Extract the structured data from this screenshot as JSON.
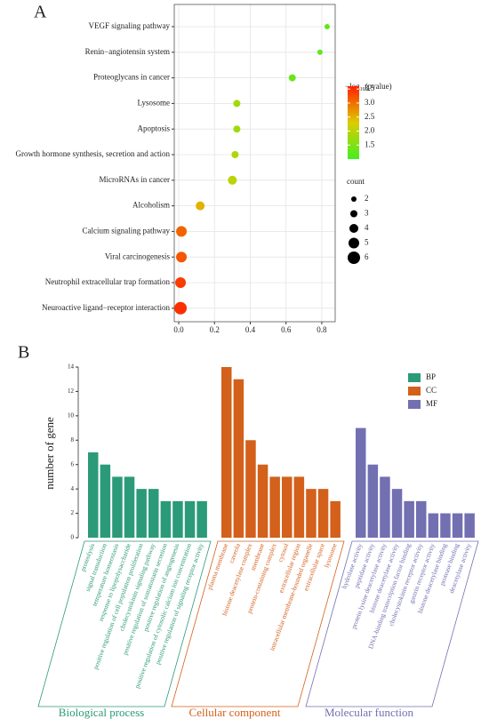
{
  "chart_data": [
    {
      "type": "dot",
      "panel_label": "A",
      "categories": [
        "VEGF signaling pathway",
        "Renin−angiotensin system",
        "Proteoglycans in cancer",
        "Lysosome",
        "Apoptosis",
        "Growth hormone synthesis, secretion and action",
        "MicroRNAs in cancer",
        "Alcoholism",
        "Calcium signaling pathway",
        "Viral carcinogenesis",
        "Neutrophil extracellular trap formation",
        "Neuroactive ligand−receptor interaction"
      ],
      "values": [
        0.83,
        0.79,
        0.635,
        0.325,
        0.325,
        0.315,
        0.3,
        0.12,
        0.015,
        0.015,
        0.01,
        0.01
      ],
      "count": [
        2,
        2,
        3,
        3,
        3,
        3,
        4,
        4,
        5,
        5,
        5,
        6
      ],
      "neg_log10_pvalue": [
        1.2,
        1.2,
        1.3,
        1.8,
        1.8,
        1.9,
        2.0,
        2.5,
        3.1,
        3.2,
        3.4,
        3.5
      ],
      "xlim": [
        -0.025,
        0.875
      ],
      "xticks": [
        {
          "value": 0,
          "label": "0.0"
        },
        0.2,
        0.4,
        0.6,
        0.8
      ],
      "grid": true,
      "color_legend_title": {
        "prefix": "−log",
        "sub": "10",
        "suffix": "(pvalue)"
      },
      "colorscale": [
        "#44ee22",
        "#ddcc00",
        "#ff2200"
      ],
      "clim": [
        1.0,
        3.6
      ],
      "cticks": [
        3.5,
        {
          "value": 3,
          "label": "3.0"
        },
        2.5,
        {
          "value": 2,
          "label": "2.0"
        },
        1.5
      ],
      "size_legend_title": "count",
      "size_ticks": [
        2,
        3,
        4,
        5,
        6
      ]
    },
    {
      "type": "grouped-bar",
      "panel_label": "B",
      "ylabel": "number of gene",
      "ylim": [
        0,
        14
      ],
      "yticks": [
        0,
        2,
        4,
        6,
        8,
        10,
        12,
        14
      ],
      "series": [
        {
          "name": "BP",
          "color": "#2b9a78",
          "group_label": "Biological process",
          "categories": [
            "proteolysis",
            "signal transduction",
            "temperature homeostasis",
            "response to lipopolysaccharide",
            "positive regulation of cell population proliferation",
            "cholecystokinin signaling pathway",
            "positive regulation of somatostatin secretion",
            "positive regulation of angiogenesis",
            "positive regulation of cytosolic calcium ion concentration",
            "positive regulation of signaling receptor activity"
          ],
          "values": [
            7,
            6,
            5,
            5,
            4,
            4,
            3,
            3,
            3,
            3
          ]
        },
        {
          "name": "CC",
          "color": "#d3601b",
          "group_label": "Cellular component",
          "categories": [
            "plasma membrane",
            "caveola",
            "histone deacetylase complex",
            "membrane",
            "protein-containing complex",
            "cytosol",
            "extracellular region",
            "intracellular membrane-bounded organelle",
            "extracellular space",
            "lysosome"
          ],
          "values": [
            14,
            13,
            8,
            6,
            5,
            5,
            5,
            4,
            4,
            3
          ]
        },
        {
          "name": "MF",
          "color": "#7270b1",
          "group_label": "Molecular function",
          "categories": [
            "hydrolase activity",
            "peptidase activity",
            "protein lysine deacetylase activity",
            "histone deacetylase activity",
            "DNA-binding transcription factor binding",
            "cholecystokinin receptor activity",
            "gastrin receptor activity",
            "histone deacetylase binding",
            "protease binding",
            "deacetylase activity"
          ],
          "values": [
            9,
            6,
            5,
            4,
            3,
            3,
            2,
            2,
            2,
            2
          ]
        }
      ]
    }
  ]
}
